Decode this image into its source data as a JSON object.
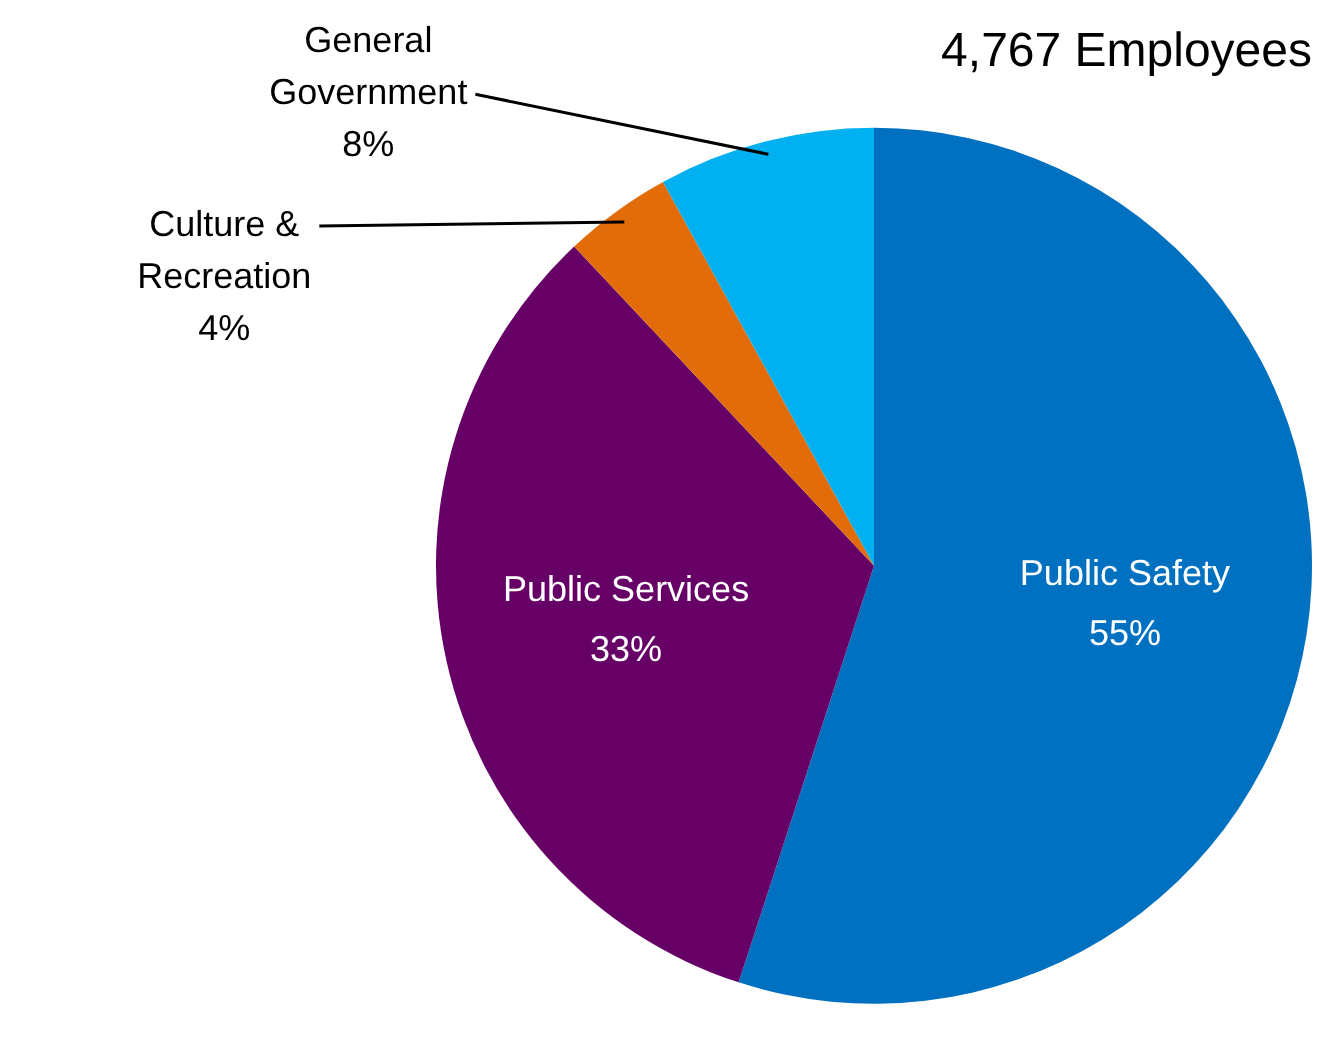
{
  "chart_data": {
    "type": "pie",
    "title": "4,767 Employees",
    "categories": [
      "Public Safety",
      "Public Services",
      "Culture & Recreation",
      "General Government"
    ],
    "values": [
      55,
      33,
      4,
      8
    ],
    "value_labels": [
      "55%",
      "33%",
      "4%",
      "8%"
    ],
    "colors": [
      "#0070c0",
      "#660066",
      "#e36c0a",
      "#00b0f0"
    ],
    "legend": false
  }
}
